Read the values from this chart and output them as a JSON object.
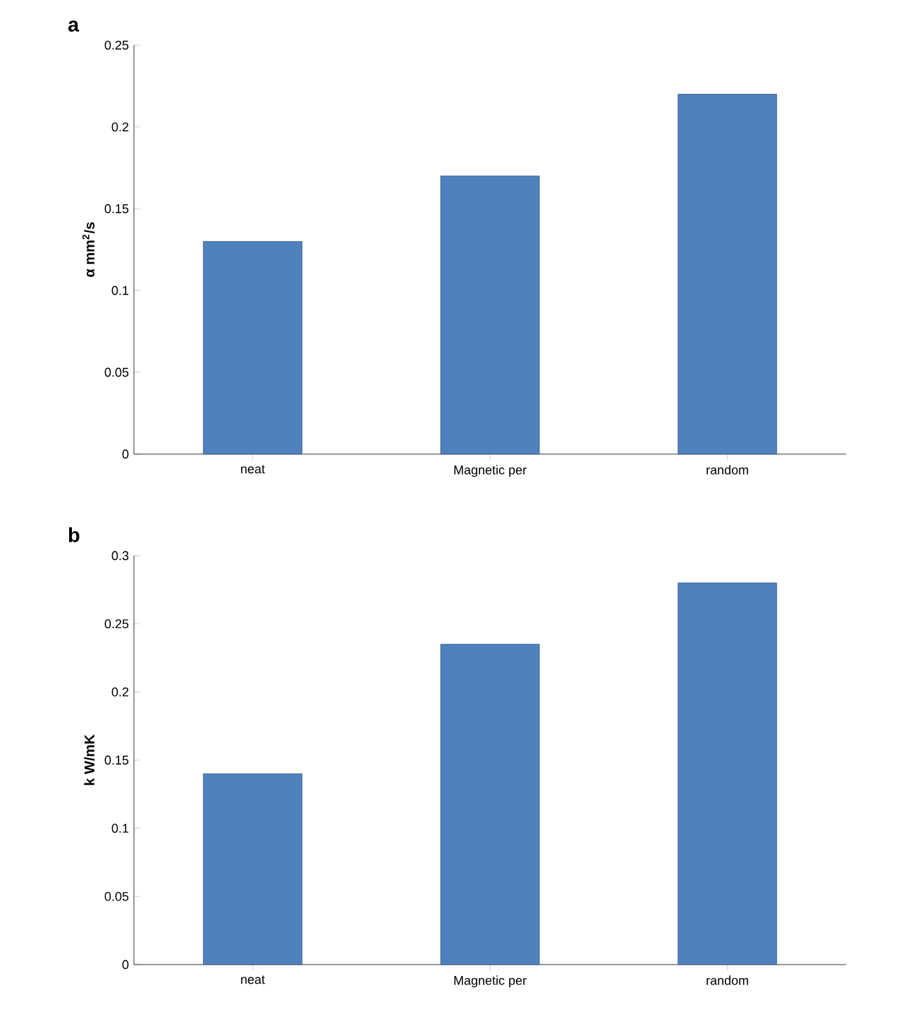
{
  "chart_data": [
    {
      "type": "bar",
      "title": "a",
      "ylabel": "α mm$^{2}$/s",
      "categories": [
        "neat",
        "Magnetic per",
        "random"
      ],
      "values": [
        0.13,
        0.17,
        0.22
      ],
      "color": "#4f81bd",
      "ylim": [
        0,
        0.25
      ],
      "yticks": [
        0,
        0.05,
        0.1,
        0.15,
        0.2,
        0.25
      ]
    },
    {
      "type": "bar",
      "title": "b",
      "ylabel": "k  W/mK",
      "categories": [
        "neat",
        "Magnetic per",
        "random"
      ],
      "values": [
        0.14,
        0.235,
        0.28
      ],
      "color": "#4f81bd",
      "ylim": [
        0,
        0.3
      ],
      "yticks": [
        0,
        0.05,
        0.1,
        0.15,
        0.2,
        0.25,
        0.3
      ]
    }
  ]
}
